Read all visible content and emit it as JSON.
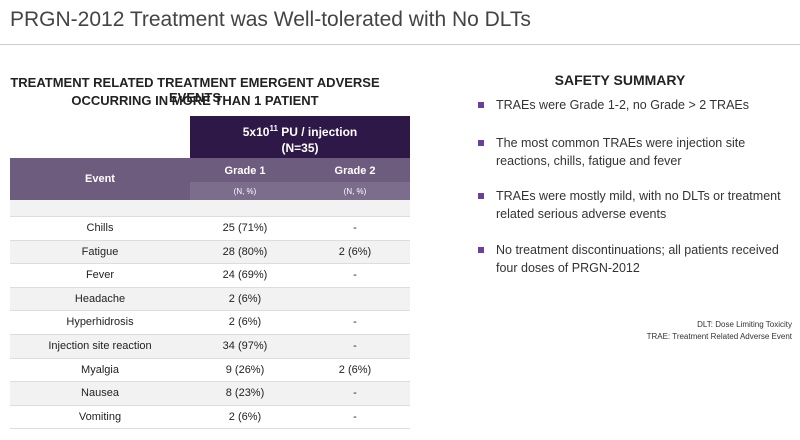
{
  "header": {
    "title": "PRGN-2012 Treatment was Well-tolerated with No DLTs"
  },
  "table_heading": [
    "TREATMENT RELATED TREATMENT EMERGENT ADVERSE EVENTS",
    "OCCURRING IN MORE THAN 1 PATIENT"
  ],
  "table": {
    "group_header": {
      "base": "5x10",
      "sup": "11",
      "rest": " PU / injection",
      "n": "(N=35)"
    },
    "columns": [
      "Event",
      "Grade 1",
      "Grade 2"
    ],
    "units": [
      "(N, %)",
      "(N, %)"
    ],
    "rows": [
      [
        "Chills",
        "25 (71%)",
        "-"
      ],
      [
        "Fatigue",
        "28 (80%)",
        "2 (6%)"
      ],
      [
        "Fever",
        "24 (69%)",
        "-"
      ],
      [
        "Headache",
        "2 (6%)",
        null
      ],
      [
        "Hyperhidrosis",
        "2 (6%)",
        "-"
      ],
      [
        "Injection site reaction",
        "34 (97%)",
        "-"
      ],
      [
        "Myalgia",
        "9 (26%)",
        "2 (6%)"
      ],
      [
        "Nausea",
        "8 (23%)",
        "-"
      ],
      [
        "Vomiting",
        "2 (6%)",
        "-"
      ]
    ]
  },
  "summary": {
    "title": "SAFETY SUMMARY",
    "bullets": [
      "TRAEs were Grade 1-2, no Grade > 2 TRAEs",
      "The most common TRAEs were injection site reactions, chills, fatigue and fever",
      "TRAEs were mostly mild, with no DLTs or treatment related serious adverse events",
      "No treatment discontinuations; all patients received four doses of PRGN-2012"
    ]
  },
  "footnotes": [
    "DLT: Dose Limiting Toxicity",
    "TRAE: Treatment Related Adverse Event"
  ]
}
